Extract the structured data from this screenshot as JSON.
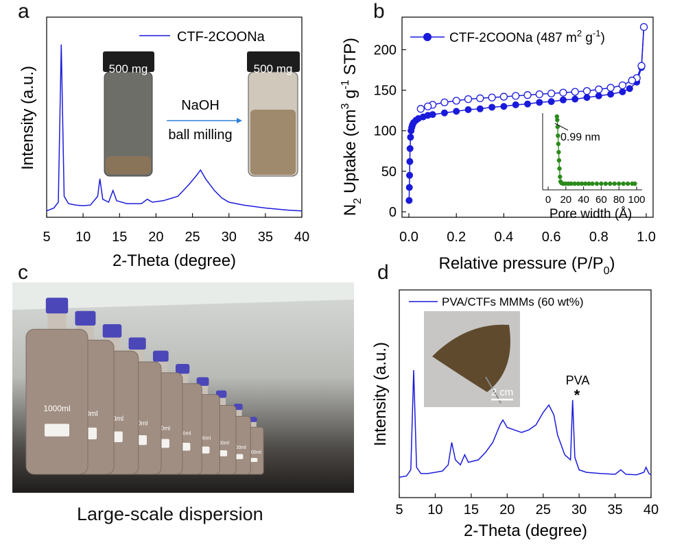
{
  "panels": {
    "a": {
      "letter": "a",
      "xlabel": "2-Theta (degree)",
      "ylabel": "Intensity (a.u.)",
      "legend": "CTF-2COONa",
      "xticks": [
        "5",
        "10",
        "15",
        "20",
        "25",
        "30",
        "35",
        "40"
      ],
      "inset": {
        "vial_left_label": "500 mg",
        "vial_right_label": "500 mg",
        "arrow_top": "NaOH",
        "arrow_bottom": "ball milling"
      }
    },
    "b": {
      "letter": "b",
      "xlabel_main": "Relative pressure (P/P",
      "xlabel_sub": "0",
      "xlabel_end": ")",
      "ylabel_parts": [
        "N",
        "2",
        " Uptake (cm",
        "3",
        " g",
        "-1",
        " STP)"
      ],
      "legend_main": "CTF-2COONa (487 m",
      "legend_sup1": "2",
      "legend_mid": " g",
      "legend_sup2": "-1",
      "legend_end": ")",
      "xticks": [
        "0.0",
        "0.2",
        "0.4",
        "0.6",
        "0.8",
        "1.0"
      ],
      "yticks": [
        "0",
        "50",
        "100",
        "150",
        "200"
      ],
      "inset": {
        "xlabel": "Pore width (Å)",
        "xticks": [
          "0",
          "20",
          "40",
          "60",
          "80",
          "100"
        ],
        "annotation": "0.99 nm"
      }
    },
    "c": {
      "letter": "c",
      "caption": "Large-scale dispersion",
      "bottle_label": "1000ml"
    },
    "d": {
      "letter": "d",
      "xlabel": "2-Theta (degree)",
      "ylabel": "Intensity (a.u.)",
      "legend": "PVA/CTFs MMMs (60 wt%)",
      "xticks": [
        "5",
        "10",
        "15",
        "20",
        "25",
        "30",
        "35",
        "40"
      ],
      "pva_label": "PVA",
      "pva_marker": "*",
      "scale_bar": "2 cm"
    }
  },
  "colors": {
    "series_blue": "#1a1adb",
    "inset_green": "#2a8a1a",
    "axis": "#111111"
  },
  "chart_data": [
    {
      "type": "line",
      "panel": "a",
      "xlabel": "2-Theta (degree)",
      "ylabel": "Intensity (a.u.)",
      "xlim": [
        5,
        40
      ],
      "series": [
        {
          "name": "CTF-2COONa",
          "x": [
            5,
            6,
            6.6,
            7.0,
            7.4,
            8,
            9,
            10,
            11,
            12,
            12.3,
            12.7,
            13.5,
            14.1,
            14.6,
            16,
            18,
            18.8,
            19.5,
            21,
            23,
            24.5,
            25.5,
            26.1,
            26.8,
            28,
            29,
            30,
            32,
            35,
            38,
            40
          ],
          "y": [
            1,
            2,
            4,
            58,
            6,
            3.5,
            3,
            2.8,
            3,
            6,
            12,
            5,
            4,
            8,
            4.5,
            3.5,
            3.5,
            5,
            4,
            4.5,
            6,
            10,
            13,
            15,
            12,
            8,
            5.5,
            4,
            3,
            2,
            1.3,
            1
          ]
        }
      ]
    },
    {
      "type": "scatter",
      "panel": "b",
      "xlim": [
        0,
        1
      ],
      "ylim": [
        0,
        230
      ],
      "series": [
        {
          "name": "adsorption",
          "x": [
            0.001,
            0.002,
            0.003,
            0.004,
            0.005,
            0.007,
            0.009,
            0.012,
            0.015,
            0.02,
            0.03,
            0.04,
            0.06,
            0.08,
            0.1,
            0.15,
            0.2,
            0.25,
            0.3,
            0.35,
            0.4,
            0.45,
            0.5,
            0.55,
            0.6,
            0.65,
            0.7,
            0.75,
            0.8,
            0.85,
            0.9,
            0.93,
            0.96,
            0.98,
            0.99
          ],
          "y": [
            14,
            30,
            45,
            62,
            78,
            92,
            100,
            104,
            107,
            110,
            113,
            115,
            117,
            119,
            120,
            122,
            124,
            126,
            127,
            129,
            130,
            132,
            133,
            135,
            136,
            138,
            139,
            141,
            143,
            145,
            148,
            152,
            160,
            178,
            228
          ]
        },
        {
          "name": "desorption",
          "x": [
            0.99,
            0.98,
            0.96,
            0.94,
            0.9,
            0.85,
            0.8,
            0.75,
            0.7,
            0.65,
            0.6,
            0.55,
            0.5,
            0.45,
            0.4,
            0.35,
            0.3,
            0.25,
            0.2,
            0.15,
            0.1,
            0.08,
            0.05
          ],
          "y": [
            228,
            180,
            165,
            162,
            156,
            153,
            151,
            149,
            148,
            147,
            146,
            145,
            144,
            143,
            142,
            141,
            140,
            139,
            137,
            135,
            132,
            130,
            127
          ]
        }
      ],
      "inset": {
        "type": "scatter",
        "xlabel": "Pore width (Å)",
        "xlim": [
          0,
          100
        ],
        "x": [
          9.9,
          10.3,
          10.7,
          11.1,
          11.5,
          11.9,
          12.3,
          12.8,
          13.4,
          14,
          15,
          17,
          20,
          23,
          26,
          30,
          34,
          38,
          42,
          46,
          50,
          55,
          60,
          65,
          70,
          75,
          80,
          85,
          90,
          95,
          98
        ],
        "y": [
          1,
          0.95,
          0.85,
          0.72,
          0.6,
          0.48,
          0.36,
          0.24,
          0.12,
          0.05,
          0.03,
          0.02,
          0.02,
          0.02,
          0.02,
          0.02,
          0.02,
          0.02,
          0.02,
          0.02,
          0.02,
          0.02,
          0.02,
          0.02,
          0.02,
          0.02,
          0.02,
          0.02,
          0.02,
          0.02,
          0.02
        ],
        "annotation": "0.99 nm"
      }
    },
    {
      "type": "line",
      "panel": "d",
      "xlabel": "2-Theta (degree)",
      "ylabel": "Intensity (a.u.)",
      "xlim": [
        5,
        40
      ],
      "series": [
        {
          "name": "PVA/CTFs MMMs (60 wt%)",
          "x": [
            5,
            6,
            6.6,
            7.0,
            7.4,
            8,
            9,
            10,
            11,
            11.8,
            12.3,
            12.8,
            13.5,
            14.1,
            14.6,
            16,
            17,
            18,
            19,
            19.4,
            20,
            21,
            22,
            23,
            24,
            25,
            25.8,
            26.5,
            27,
            28,
            28.8,
            29.1,
            29.4,
            30,
            31,
            33,
            35,
            35.8,
            36.5,
            38,
            39,
            39.3,
            39.7,
            40
          ],
          "y": [
            1,
            1.5,
            4,
            44,
            5,
            2.5,
            2.5,
            3,
            3.5,
            6,
            15,
            8,
            6,
            10,
            7,
            8,
            11,
            15,
            22,
            24,
            21,
            20,
            19,
            20,
            22,
            27,
            30,
            26,
            18,
            10,
            8,
            32,
            9,
            4,
            3,
            2.5,
            2.2,
            4,
            2.2,
            2,
            3,
            5,
            2.5,
            2
          ]
        }
      ]
    }
  ]
}
